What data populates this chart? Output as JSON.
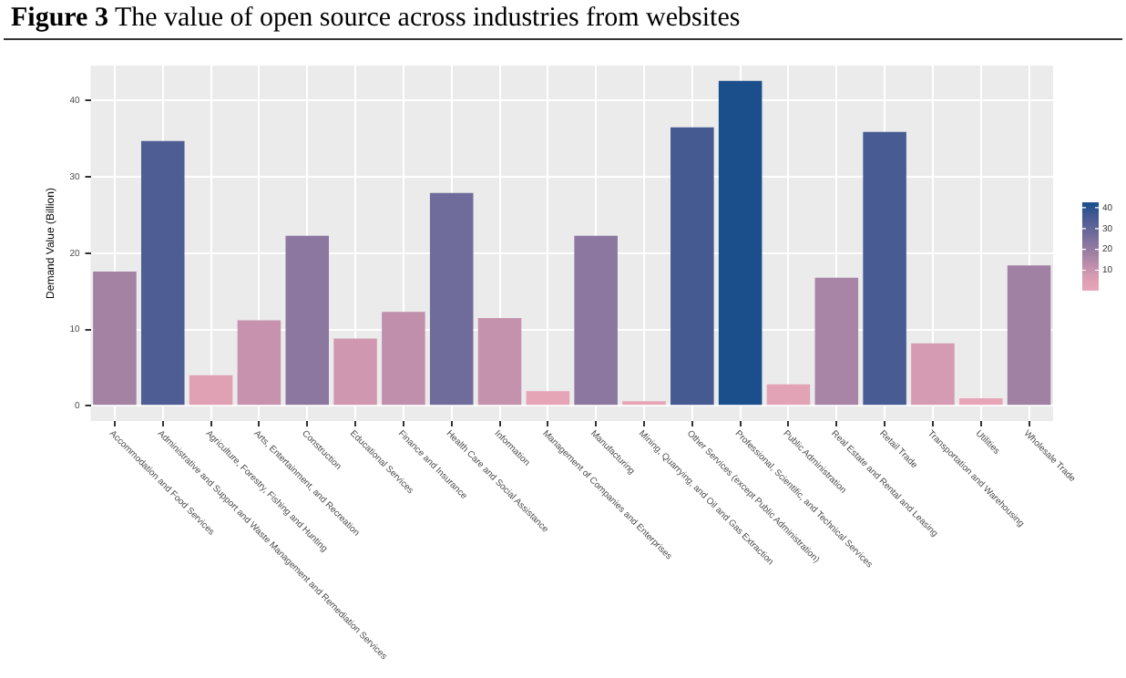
{
  "chart_data": {
    "type": "bar",
    "title": "Figure 3 The value of open source across industries from websites",
    "ylabel": "Demand Value (Billion)",
    "categories": [
      "Accommodation and Food Services",
      "Administrative and Support and Waste Management and Remediation Services",
      "Agriculture, Forestry, Fishing and Hunting",
      "Arts, Entertainment, and Recreation",
      "Construction",
      "Educational Services",
      "Finance and Insurance",
      "Health Care and Social Assistance",
      "Information",
      "Management of Companies and Enterprises",
      "Manufacturing",
      "Mining, Quarrying, and Oil and Gas Extraction",
      "Other Services (except Public Administration)",
      "Professional, Scientific, and Technical Services",
      "Public Administration",
      "Real Estate and Rental and Leasing",
      "Retail Trade",
      "Transportation and Warehousing",
      "Utilities",
      "Wholesale Trade"
    ],
    "values": [
      17.6,
      34.7,
      4.0,
      11.2,
      22.3,
      8.8,
      12.3,
      27.9,
      11.5,
      1.9,
      22.3,
      0.6,
      36.5,
      42.6,
      2.8,
      16.8,
      35.9,
      8.2,
      1.0,
      18.4
    ],
    "colors": [
      "#a482a4",
      "#4e5e94",
      "#e0a1b5",
      "#c692ae",
      "#8c77a0",
      "#cf98b0",
      "#c08fac",
      "#6f6b9b",
      "#c592ad",
      "#e5a5b7",
      "#8c77a0",
      "#e6a6b8",
      "#465a92",
      "#1a4f8c",
      "#e3a3b6",
      "#a885a6",
      "#485c93",
      "#d49bb2",
      "#e6a6b8",
      "#a080a3"
    ],
    "ylim": [
      -2,
      44.6
    ],
    "yticks": [
      0,
      10,
      20,
      30,
      40
    ],
    "grid": true,
    "clim": [
      0.6,
      42.6
    ],
    "cticks": [
      10,
      20,
      30,
      40
    ]
  }
}
